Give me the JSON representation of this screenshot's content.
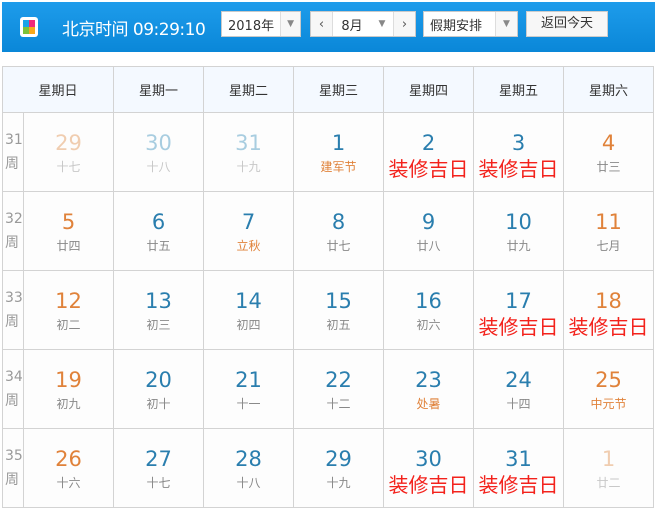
{
  "header": {
    "clock_label": "北京时间",
    "time": "09:29:10",
    "year": "2018年",
    "month": "8月",
    "prev_icon": "chevron-left",
    "next_icon": "chevron-right",
    "holiday": "假期安排",
    "today_button": "返回今天"
  },
  "colors": {
    "bar": "#0a87d8",
    "weekday": "#2a7eae",
    "weekend": "#e0823a",
    "note": "#f3221c"
  },
  "weekdays": [
    "星期日",
    "星期一",
    "星期二",
    "星期三",
    "星期四",
    "星期五",
    "星期六"
  ],
  "weeks": [
    {
      "num": "31",
      "unit": "周",
      "days": [
        {
          "day": "29",
          "sub": "十七",
          "type": "fade we"
        },
        {
          "day": "30",
          "sub": "十八",
          "type": "fade wd"
        },
        {
          "day": "31",
          "sub": "十九",
          "type": "fade wd"
        },
        {
          "day": "1",
          "sub": "建军节",
          "type": "fest"
        },
        {
          "day": "2",
          "sub": "装修吉日",
          "type": "red"
        },
        {
          "day": "3",
          "sub": "装修吉日",
          "type": "red"
        },
        {
          "day": "4",
          "sub": "廿三",
          "type": "we"
        }
      ]
    },
    {
      "num": "32",
      "unit": "周",
      "days": [
        {
          "day": "5",
          "sub": "廿四",
          "type": "we"
        },
        {
          "day": "6",
          "sub": "廿五",
          "type": ""
        },
        {
          "day": "7",
          "sub": "立秋",
          "type": "fest"
        },
        {
          "day": "8",
          "sub": "廿七",
          "type": ""
        },
        {
          "day": "9",
          "sub": "廿八",
          "type": ""
        },
        {
          "day": "10",
          "sub": "廿九",
          "type": ""
        },
        {
          "day": "11",
          "sub": "七月",
          "type": "we"
        }
      ]
    },
    {
      "num": "33",
      "unit": "周",
      "days": [
        {
          "day": "12",
          "sub": "初二",
          "type": "we"
        },
        {
          "day": "13",
          "sub": "初三",
          "type": ""
        },
        {
          "day": "14",
          "sub": "初四",
          "type": ""
        },
        {
          "day": "15",
          "sub": "初五",
          "type": ""
        },
        {
          "day": "16",
          "sub": "初六",
          "type": ""
        },
        {
          "day": "17",
          "sub": "装修吉日",
          "type": "red"
        },
        {
          "day": "18",
          "sub": "装修吉日",
          "type": "red we"
        }
      ]
    },
    {
      "num": "34",
      "unit": "周",
      "days": [
        {
          "day": "19",
          "sub": "初九",
          "type": "we"
        },
        {
          "day": "20",
          "sub": "初十",
          "type": ""
        },
        {
          "day": "21",
          "sub": "十一",
          "type": ""
        },
        {
          "day": "22",
          "sub": "十二",
          "type": ""
        },
        {
          "day": "23",
          "sub": "处暑",
          "type": "fest"
        },
        {
          "day": "24",
          "sub": "十四",
          "type": ""
        },
        {
          "day": "25",
          "sub": "中元节",
          "type": "we fest"
        }
      ]
    },
    {
      "num": "35",
      "unit": "周",
      "days": [
        {
          "day": "26",
          "sub": "十六",
          "type": "we"
        },
        {
          "day": "27",
          "sub": "十七",
          "type": ""
        },
        {
          "day": "28",
          "sub": "十八",
          "type": ""
        },
        {
          "day": "29",
          "sub": "十九",
          "type": ""
        },
        {
          "day": "30",
          "sub": "装修吉日",
          "type": "red"
        },
        {
          "day": "31",
          "sub": "装修吉日",
          "type": "red"
        },
        {
          "day": "1",
          "sub": "廿二",
          "type": "fade we"
        }
      ]
    }
  ]
}
